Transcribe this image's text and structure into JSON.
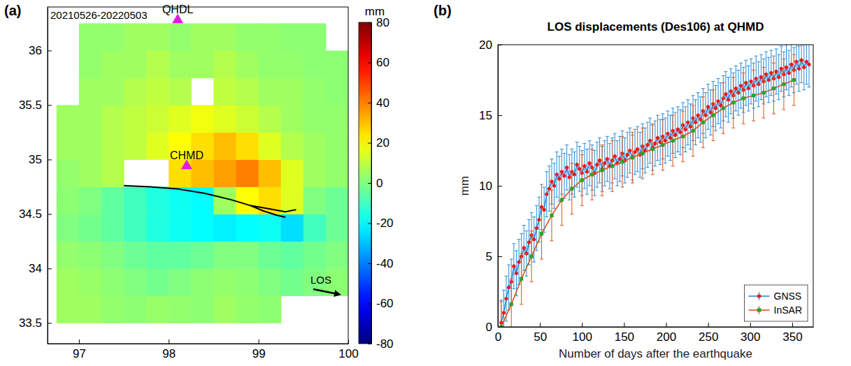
{
  "chart_data": [
    {
      "type": "heatmap",
      "panel": "(a)",
      "annotation": "20210526-20220503",
      "xlim": [
        96.65,
        100
      ],
      "ylim": [
        33.31,
        36.4
      ],
      "xticks": [
        97,
        98,
        99,
        100
      ],
      "yticks": [
        33.5,
        34,
        34.5,
        35,
        35.5,
        36
      ],
      "grid": false,
      "cells": {
        "lon_bins": [
          96.75,
          97,
          97.25,
          97.5,
          97.75,
          98,
          98.25,
          98.5,
          98.75,
          99,
          99.25,
          99.5,
          99.75,
          100
        ],
        "lat_bins": [
          33.5,
          33.75,
          34,
          34.25,
          34.5,
          34.75,
          35,
          35.25,
          35.5,
          35.75,
          36,
          36.25
        ],
        "values": [
          [
            5,
            5,
            3,
            2,
            4,
            3,
            2,
            5,
            3,
            2,
            null,
            null,
            null
          ],
          [
            5,
            4,
            2,
            0,
            -2,
            0,
            2,
            3,
            2,
            0,
            -2,
            0,
            2
          ],
          [
            3,
            2,
            0,
            -3,
            -5,
            -5,
            -3,
            0,
            0,
            -3,
            -5,
            -2,
            0
          ],
          [
            0,
            -2,
            -5,
            -10,
            -15,
            -18,
            -20,
            -22,
            -20,
            -18,
            -25,
            -10,
            -3
          ],
          [
            2,
            0,
            -5,
            -10,
            -15,
            -18,
            -20,
            5,
            20,
            25,
            15,
            0,
            -3
          ],
          [
            3,
            5,
            8,
            null,
            null,
            25,
            30,
            35,
            40,
            30,
            15,
            5,
            3
          ],
          [
            5,
            5,
            8,
            10,
            15,
            20,
            25,
            30,
            25,
            15,
            8,
            5,
            3
          ],
          [
            5,
            5,
            8,
            10,
            12,
            15,
            18,
            15,
            12,
            8,
            5,
            3,
            3
          ],
          [
            null,
            5,
            5,
            8,
            10,
            8,
            null,
            10,
            8,
            5,
            5,
            3,
            2
          ],
          [
            null,
            3,
            5,
            5,
            8,
            5,
            5,
            8,
            5,
            3,
            3,
            2,
            2
          ],
          [
            null,
            3,
            3,
            5,
            5,
            3,
            5,
            5,
            3,
            3,
            2,
            2,
            null
          ]
        ]
      },
      "colorbar": {
        "range": [
          -80,
          80
        ],
        "ticks": [
          -80,
          -60,
          -40,
          -20,
          0,
          20,
          40,
          60,
          80
        ],
        "label": "mm"
      },
      "stations": [
        {
          "name": "QHDL",
          "lon": 98.1,
          "lat": 36.28
        },
        {
          "name": "CHMD",
          "lon": 98.2,
          "lat": 34.94
        }
      ],
      "fault": {
        "lon": [
          97.5,
          97.8,
          98.1,
          98.4,
          98.7,
          98.9,
          99.05,
          99.2,
          99.3,
          null,
          98.9,
          99.1,
          99.3,
          99.42
        ],
        "lat": [
          34.76,
          34.75,
          34.73,
          34.69,
          34.63,
          34.58,
          34.53,
          34.49,
          34.47,
          null,
          34.58,
          34.55,
          34.52,
          34.54
        ]
      },
      "los_label": "LOS"
    },
    {
      "type": "line",
      "panel": "(b)",
      "title": "LOS displacements (Des106) at QHMD",
      "xlabel": "Number of days after the earthquake",
      "ylabel": "mm",
      "xlim": [
        0,
        375
      ],
      "ylim": [
        0,
        20
      ],
      "xticks": [
        0,
        50,
        100,
        150,
        200,
        250,
        300,
        350
      ],
      "yticks": [
        0,
        5,
        10,
        15,
        20
      ],
      "grid": false,
      "legend": "lower right",
      "series": [
        {
          "name": "GNSS",
          "color": "#2b8ad6",
          "marker": "circle",
          "line_style": "solid",
          "x": [
            4,
            7,
            10,
            13,
            16,
            19,
            22,
            25,
            28,
            31,
            34,
            37,
            40,
            43,
            46,
            49,
            52,
            55,
            58,
            61,
            64,
            67,
            70,
            73,
            76,
            79,
            82,
            85,
            88,
            91,
            94,
            97,
            100,
            103,
            106,
            109,
            112,
            115,
            118,
            121,
            124,
            127,
            130,
            133,
            136,
            139,
            142,
            145,
            148,
            151,
            154,
            157,
            160,
            163,
            166,
            169,
            172,
            175,
            178,
            181,
            184,
            187,
            190,
            193,
            196,
            199,
            202,
            205,
            208,
            211,
            214,
            217,
            220,
            223,
            226,
            229,
            232,
            235,
            238,
            241,
            244,
            247,
            250,
            253,
            256,
            259,
            262,
            265,
            268,
            271,
            274,
            277,
            280,
            283,
            286,
            289,
            292,
            295,
            298,
            301,
            304,
            307,
            310,
            313,
            316,
            319,
            322,
            325,
            328,
            331,
            334,
            337,
            340,
            343,
            346,
            349,
            352,
            355,
            358,
            361,
            364,
            367,
            370
          ],
          "values": [
            0.3,
            1.0,
            2.0,
            2.8,
            3.2,
            4.3,
            3.8,
            4.6,
            5.0,
            5.6,
            5.2,
            6.0,
            6.5,
            6.2,
            7.0,
            7.6,
            8.5,
            8.3,
            9.4,
            9.8,
            10.3,
            10.0,
            10.8,
            10.5,
            11.0,
            10.7,
            11.3,
            10.6,
            11.0,
            10.8,
            11.5,
            11.2,
            10.9,
            11.4,
            11.0,
            11.6,
            11.3,
            10.9,
            11.5,
            11.8,
            11.2,
            11.6,
            11.9,
            11.4,
            11.8,
            12.1,
            11.6,
            11.9,
            12.3,
            11.8,
            12.2,
            12.5,
            12.0,
            12.4,
            12.6,
            12.2,
            12.8,
            12.5,
            12.9,
            13.2,
            12.7,
            13.0,
            13.4,
            13.1,
            13.5,
            13.2,
            13.7,
            13.4,
            13.9,
            13.6,
            14.0,
            13.8,
            14.3,
            14.0,
            14.5,
            14.2,
            14.8,
            14.5,
            15.0,
            14.7,
            15.3,
            15.0,
            15.6,
            15.2,
            15.8,
            15.5,
            16.0,
            15.7,
            16.2,
            16.5,
            16.1,
            16.7,
            16.4,
            16.9,
            16.6,
            17.1,
            16.8,
            17.3,
            16.9,
            17.4,
            17.1,
            17.6,
            17.2,
            17.7,
            17.4,
            17.9,
            17.5,
            18.0,
            17.6,
            18.1,
            17.7,
            18.3,
            17.9,
            18.4,
            18.0,
            18.6,
            18.2,
            18.8,
            18.3,
            18.9,
            18.4,
            18.8,
            18.6
          ],
          "errors": [
            1.6,
            1.6,
            1.6,
            1.6,
            1.6,
            1.6,
            1.6,
            1.6,
            1.6,
            1.6,
            1.6,
            1.6,
            1.6,
            1.6,
            1.6,
            1.6,
            1.6,
            1.6,
            1.6,
            1.6,
            1.6,
            1.6,
            1.6,
            1.6,
            1.6,
            1.6,
            1.6,
            1.6,
            1.6,
            1.6,
            1.6,
            1.6,
            1.6,
            1.6,
            1.6,
            1.6,
            1.6,
            1.6,
            1.6,
            1.6,
            1.6,
            1.6,
            1.6,
            1.6,
            1.6,
            1.6,
            1.6,
            1.6,
            1.6,
            1.6,
            1.6,
            1.6,
            1.6,
            1.6,
            1.6,
            1.6,
            1.6,
            1.6,
            1.6,
            1.6,
            1.6,
            1.6,
            1.6,
            1.6,
            1.6,
            1.6,
            1.6,
            1.6,
            1.6,
            1.6,
            1.6,
            1.6,
            1.6,
            1.6,
            1.6,
            1.6,
            1.6,
            1.6,
            1.6,
            1.6,
            1.6,
            1.6,
            1.6,
            1.6,
            1.6,
            1.6,
            1.6,
            1.6,
            1.6,
            1.6,
            1.6,
            1.6,
            1.6,
            1.6,
            1.6,
            1.6,
            1.6,
            1.6,
            1.6,
            1.6,
            1.6,
            1.6,
            1.6,
            1.6,
            1.6,
            1.6,
            1.6,
            1.6,
            1.6,
            1.6,
            1.6,
            1.6,
            1.6,
            1.6,
            1.6,
            1.6,
            1.6,
            1.6,
            1.6,
            1.6,
            1.6,
            1.6,
            1.6
          ]
        },
        {
          "name": "InSAR",
          "color": "#d95319",
          "marker": "square",
          "line_style": "solid",
          "x": [
            4,
            16,
            28,
            40,
            52,
            64,
            76,
            88,
            100,
            112,
            124,
            136,
            148,
            160,
            172,
            184,
            196,
            208,
            220,
            232,
            244,
            256,
            268,
            280,
            292,
            304,
            316,
            328,
            340,
            352
          ],
          "values": [
            0.0,
            1.6,
            3.4,
            5.0,
            6.6,
            7.9,
            9.0,
            9.8,
            10.4,
            10.8,
            11.1,
            11.4,
            11.7,
            12.0,
            12.3,
            12.6,
            12.9,
            13.2,
            13.5,
            13.9,
            14.5,
            15.0,
            15.5,
            15.9,
            16.2,
            16.4,
            16.6,
            16.9,
            17.2,
            17.5
          ],
          "errors": [
            1.8,
            1.8,
            1.8,
            1.8,
            1.8,
            1.8,
            1.8,
            1.8,
            1.8,
            1.8,
            1.8,
            1.8,
            1.8,
            1.8,
            1.8,
            1.8,
            1.8,
            1.8,
            1.8,
            1.8,
            1.8,
            1.8,
            1.8,
            1.8,
            1.8,
            1.8,
            1.8,
            1.8,
            1.8,
            1.8
          ]
        }
      ]
    }
  ]
}
